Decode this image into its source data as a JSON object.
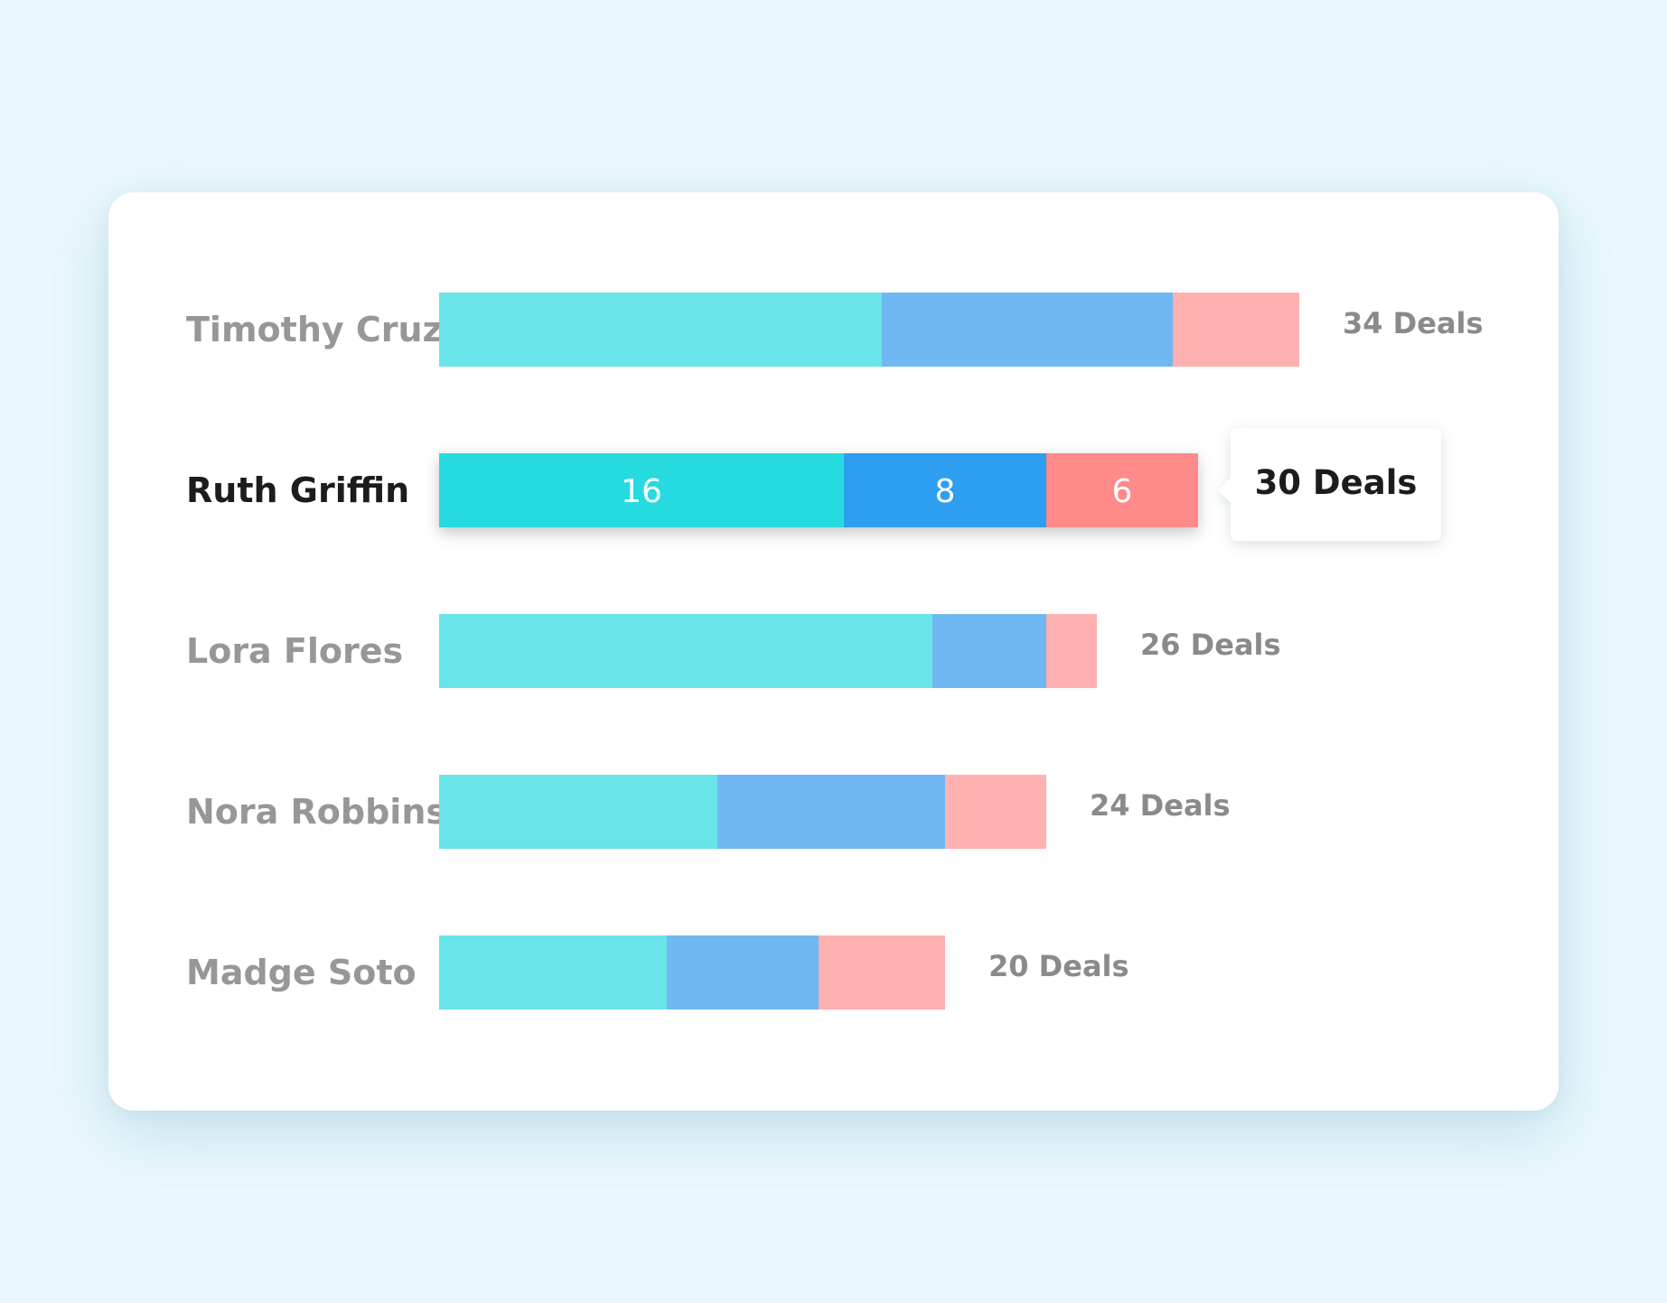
{
  "chart_data": {
    "type": "bar",
    "orientation": "horizontal",
    "stacked": true,
    "categories": [
      "Timothy Cruz",
      "Ruth Griffin",
      "Lora Flores",
      "Nora Robbins",
      "Madge Soto"
    ],
    "series": [
      {
        "values": [
          17.5,
          16,
          19.5,
          11,
          9
        ],
        "color": "#69e4e8"
      },
      {
        "values": [
          11.5,
          8,
          4.5,
          9,
          6
        ],
        "color": "#70b8f2"
      },
      {
        "values": [
          5,
          6,
          2,
          4,
          5
        ],
        "color": "#ffb0b0"
      }
    ],
    "totals": [
      "34 Deals",
      "30 Deals",
      "26 Deals",
      "24 Deals",
      "20 Deals"
    ],
    "highlighted_category_index": 1,
    "highlight_colors": [
      "#27dbe0",
      "#2f9ff0",
      "#ff8a8a"
    ],
    "segment_labels_highlighted": [
      "16",
      "8",
      "6"
    ],
    "tooltip": "30 Deals",
    "grid": false,
    "legend": "none"
  }
}
